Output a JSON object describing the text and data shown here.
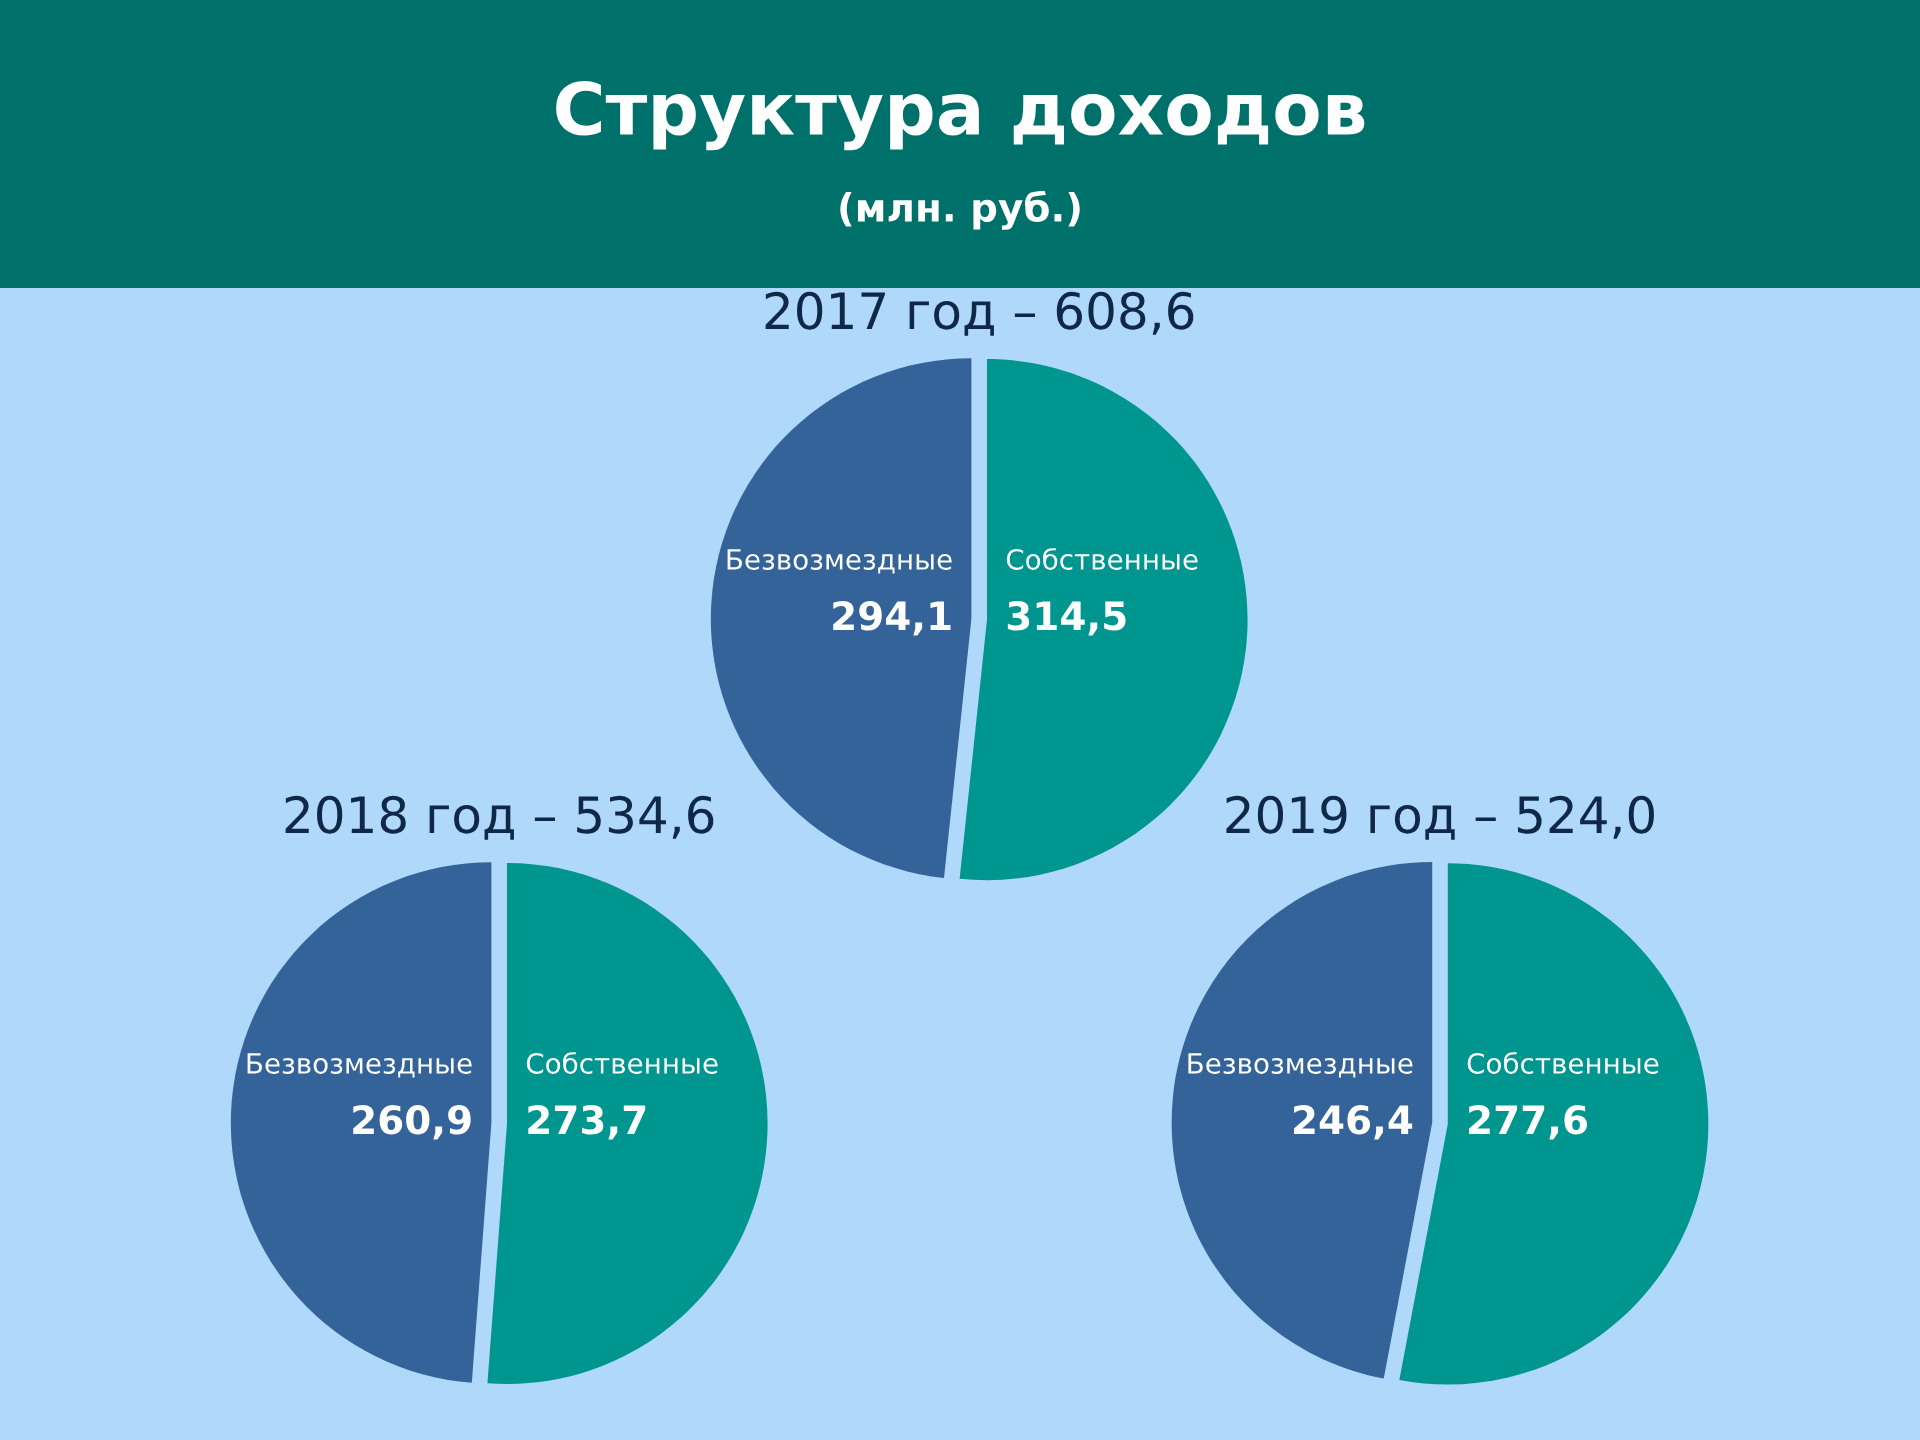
{
  "chart_data": [
    {
      "type": "other",
      "title": "Структура доходов",
      "subtitle": "(млн. руб.)"
    },
    {
      "type": "pie",
      "title": "2017 год – 608,6",
      "categories": [
        "Безвозмездные",
        "Собственные"
      ],
      "values": [
        294.1,
        314.5
      ],
      "colors": [
        "#34639a",
        "#009690"
      ],
      "value_labels": [
        "294,1",
        "314,5"
      ]
    },
    {
      "type": "pie",
      "title": "2018 год – 534,6",
      "categories": [
        "Безвозмездные",
        "Собственные"
      ],
      "values": [
        260.9,
        273.7
      ],
      "colors": [
        "#34639a",
        "#009690"
      ],
      "value_labels": [
        "260,9",
        "273,7"
      ]
    },
    {
      "type": "pie",
      "title": "2019 год – 524,0",
      "categories": [
        "Безвозмездные",
        "Собственные"
      ],
      "values": [
        246.4,
        277.6
      ],
      "colors": [
        "#34639a",
        "#009690"
      ],
      "value_labels": [
        "246,4",
        "277,6"
      ]
    }
  ]
}
